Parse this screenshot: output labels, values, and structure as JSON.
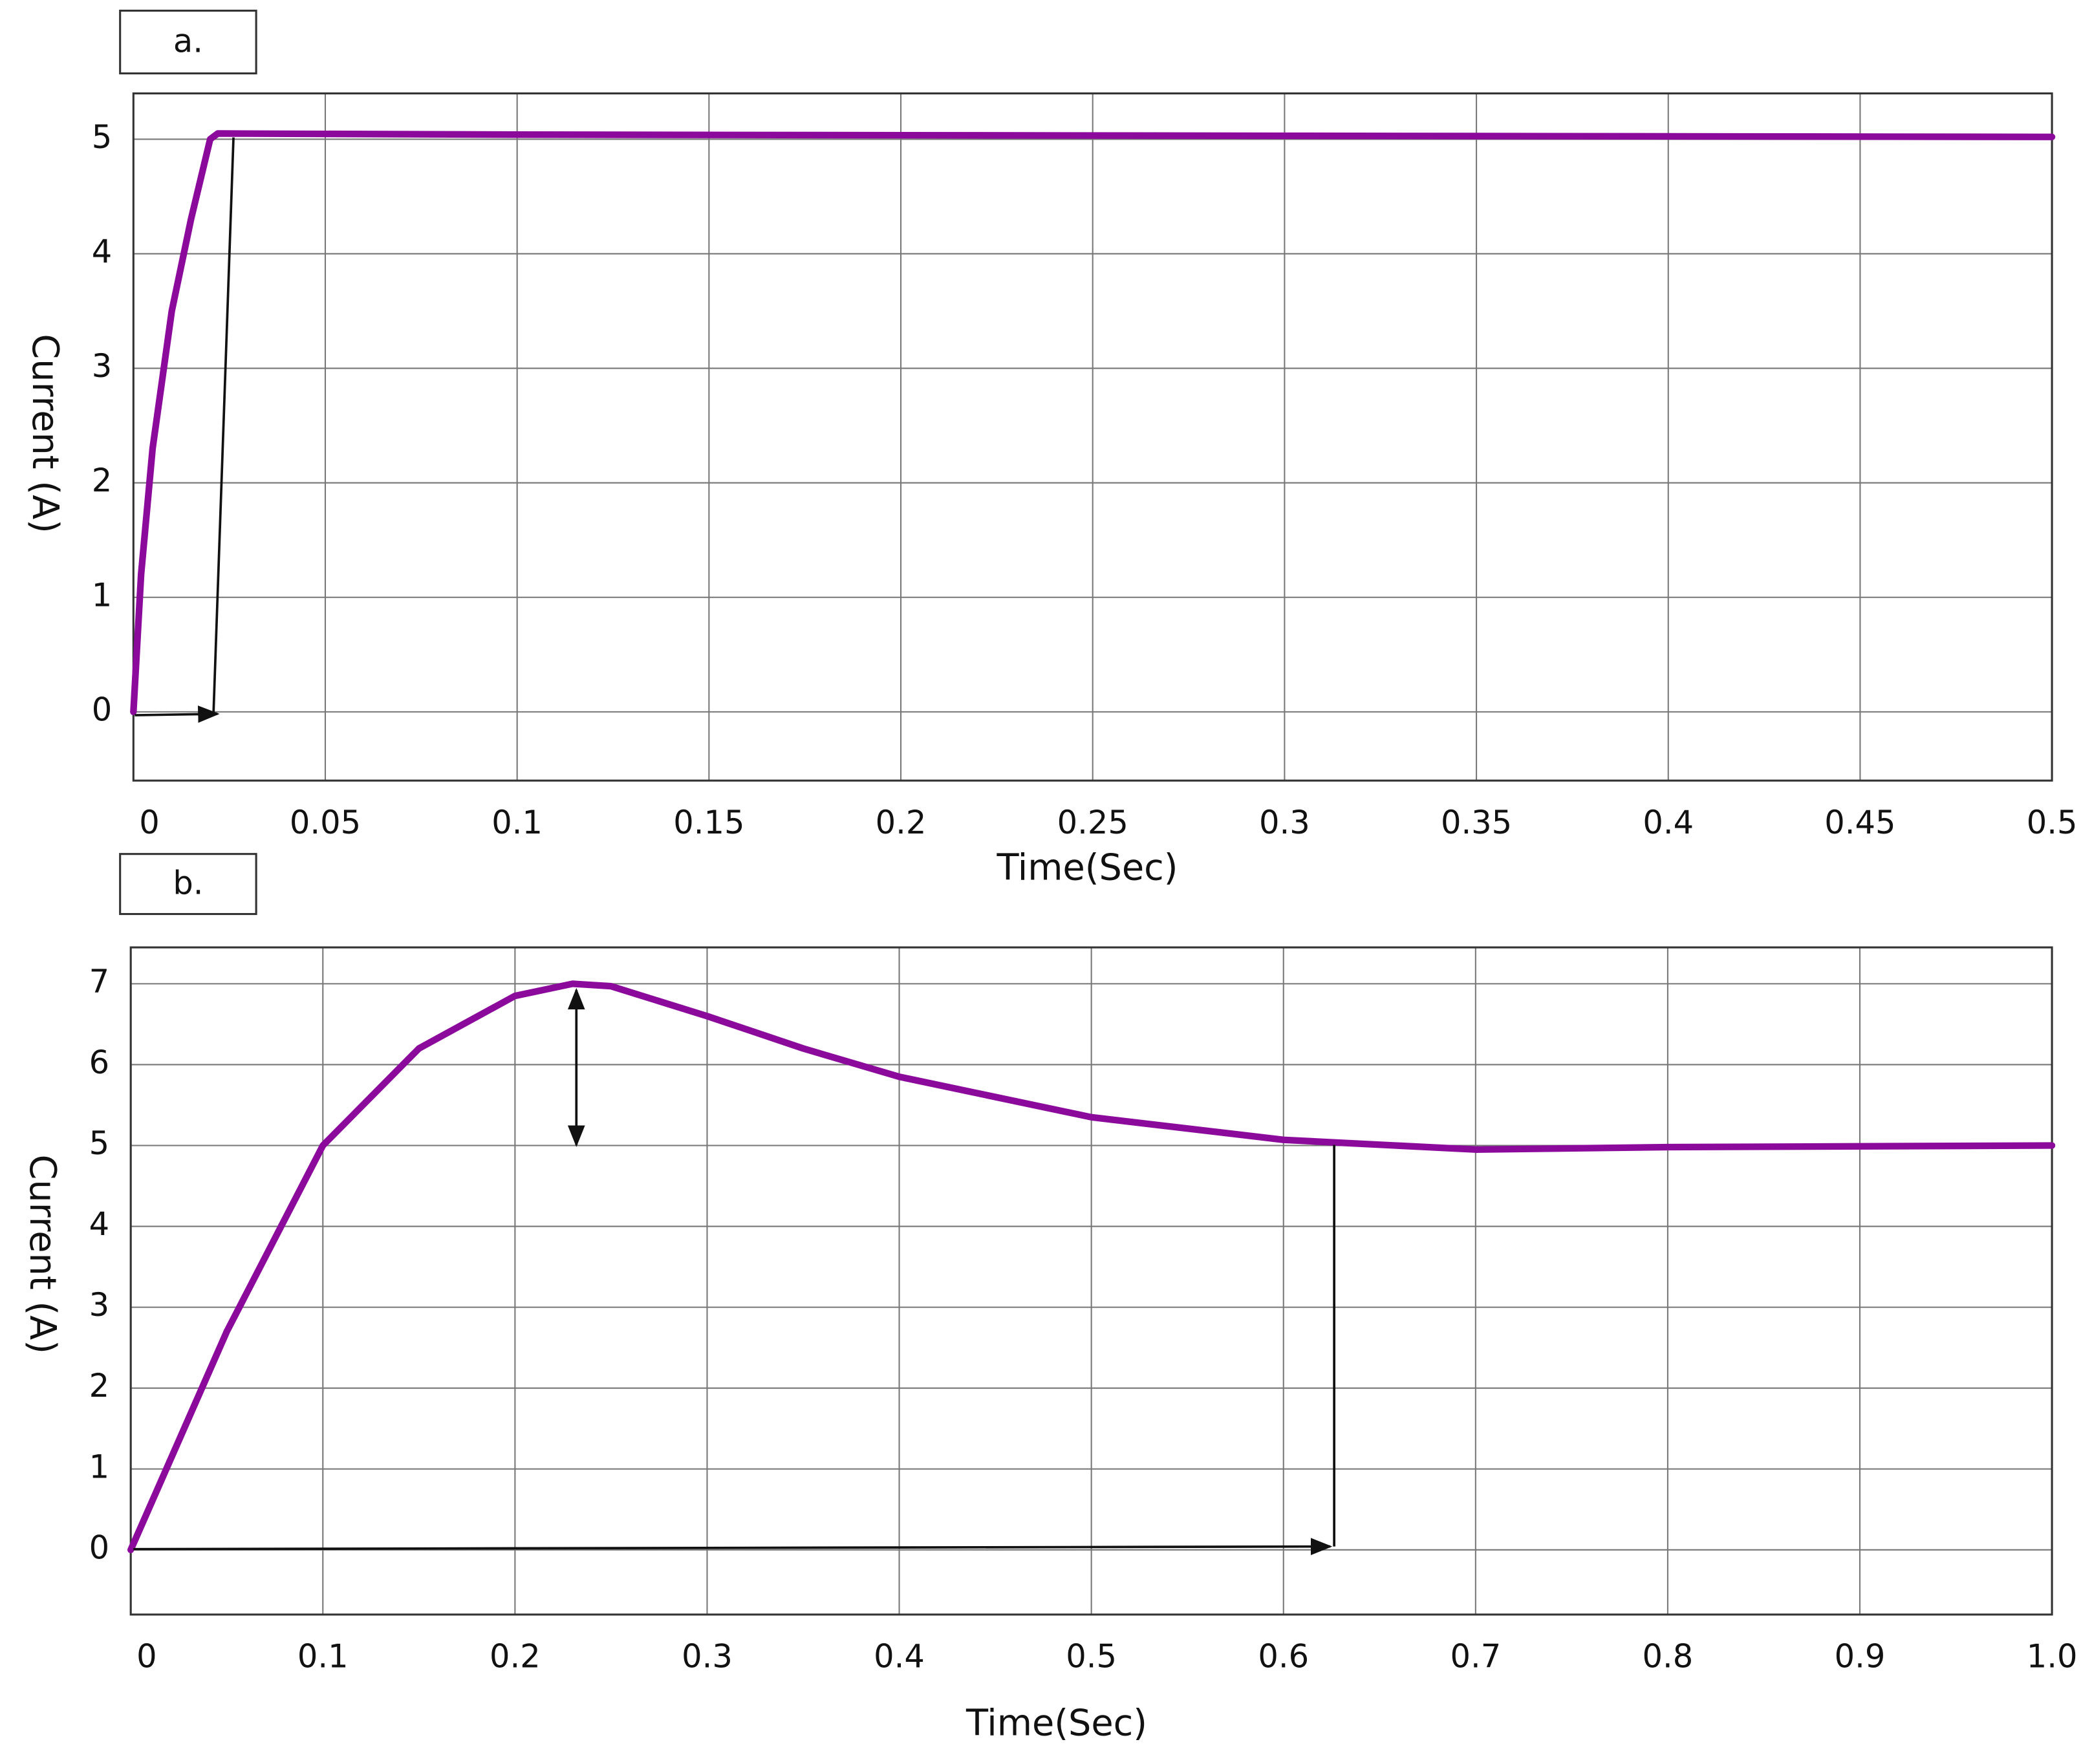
{
  "chart_data": [
    {
      "type": "line",
      "label": "a.",
      "xlabel": "Time(Sec)",
      "ylabel": "Current (A)",
      "x": [
        0,
        0.002,
        0.005,
        0.01,
        0.015,
        0.02,
        0.022,
        0.1,
        0.3,
        0.5
      ],
      "series": [
        {
          "name": "Current",
          "color": "#8b0a9c",
          "values": [
            0,
            1.2,
            2.3,
            3.5,
            4.3,
            5.0,
            5.05,
            5.04,
            5.03,
            5.02
          ]
        }
      ],
      "xlim": [
        0,
        0.5
      ],
      "ylim": [
        -0.6,
        5.4
      ],
      "xticks": [
        0,
        0.05,
        0.1,
        0.15,
        0.2,
        0.25,
        0.3,
        0.35,
        0.4,
        0.45,
        0.5
      ],
      "yticks": [
        0,
        1,
        2,
        3,
        4,
        5
      ],
      "grid": true
    },
    {
      "type": "line",
      "label": "b.",
      "xlabel": "Time(Sec)",
      "ylabel": "Current (A)",
      "x": [
        0,
        0.05,
        0.1,
        0.15,
        0.2,
        0.23,
        0.25,
        0.3,
        0.35,
        0.4,
        0.5,
        0.6,
        0.7,
        0.8,
        1.0
      ],
      "series": [
        {
          "name": "Current",
          "color": "#8b0a9c",
          "values": [
            0,
            2.7,
            5.0,
            6.2,
            6.85,
            7.0,
            6.97,
            6.6,
            6.2,
            5.85,
            5.35,
            5.07,
            4.95,
            4.98,
            5.0
          ]
        }
      ],
      "xlim": [
        0,
        1
      ],
      "ylim": [
        -0.8,
        7.45
      ],
      "xticks": [
        0,
        0.1,
        0.2,
        0.3,
        0.4,
        0.5,
        0.6,
        0.7,
        0.8,
        0.9,
        {
          "value": 1,
          "label": "1.0"
        }
      ],
      "yticks": [
        0,
        1,
        2,
        3,
        4,
        5,
        6,
        7
      ],
      "grid": true
    }
  ]
}
